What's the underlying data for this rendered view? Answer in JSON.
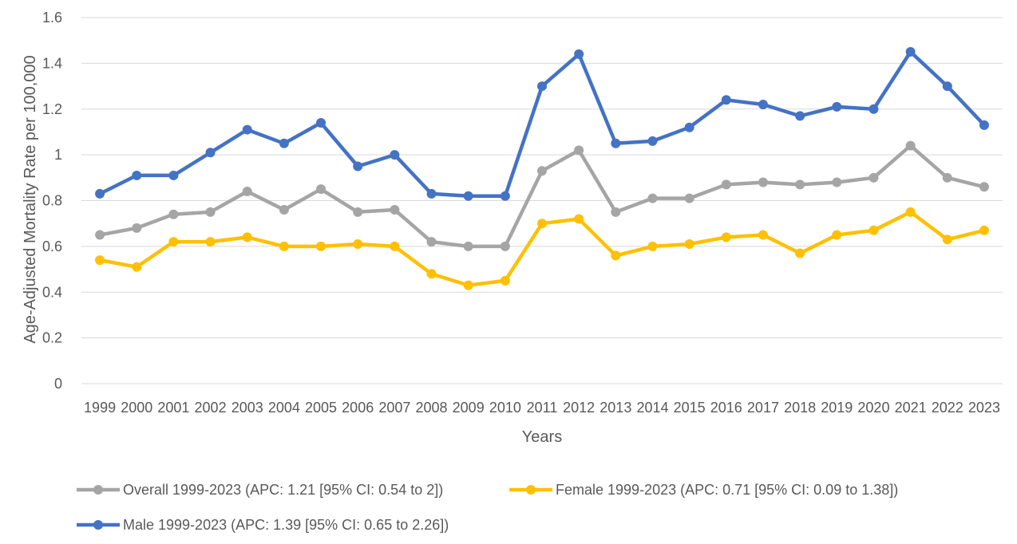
{
  "chart_data": {
    "type": "line",
    "title": "",
    "xlabel": "Years",
    "ylabel": "Age-Adjusted Mortality Rate per 100,000",
    "ylim": [
      0,
      1.6
    ],
    "yticks": [
      "0",
      "0.2",
      "0.4",
      "0.6",
      "0.8",
      "1",
      "1.2",
      "1.4",
      "1.6"
    ],
    "grid": true,
    "legend_position": "bottom",
    "categories": [
      "1999",
      "2000",
      "2001",
      "2002",
      "2003",
      "2004",
      "2005",
      "2006",
      "2007",
      "2008",
      "2009",
      "2010",
      "2011",
      "2012",
      "2013",
      "2014",
      "2015",
      "2016",
      "2017",
      "2018",
      "2019",
      "2020",
      "2021",
      "2022",
      "2023"
    ],
    "series": [
      {
        "name": "Overall 1999-2023 (APC: 1.21 [95% CI: 0.54 to 2])",
        "color": "#a5a5a5",
        "values": [
          0.65,
          0.68,
          0.74,
          0.75,
          0.84,
          0.76,
          0.85,
          0.75,
          0.76,
          0.62,
          0.6,
          0.6,
          0.93,
          1.02,
          0.75,
          0.81,
          0.81,
          0.87,
          0.88,
          0.87,
          0.88,
          0.9,
          1.04,
          0.9,
          0.86
        ]
      },
      {
        "name": "Female 1999-2023 (APC: 0.71 [95% CI: 0.09 to 1.38])",
        "color": "#ffc000",
        "values": [
          0.54,
          0.51,
          0.62,
          0.62,
          0.64,
          0.6,
          0.6,
          0.61,
          0.6,
          0.48,
          0.43,
          0.45,
          0.7,
          0.72,
          0.56,
          0.6,
          0.61,
          0.64,
          0.65,
          0.57,
          0.65,
          0.67,
          0.75,
          0.63,
          0.67
        ]
      },
      {
        "name": "Male 1999-2023 (APC: 1.39 [95% CI: 0.65 to 2.26])",
        "color": "#4472c4",
        "values": [
          0.83,
          0.91,
          0.91,
          1.01,
          1.11,
          1.05,
          1.14,
          0.95,
          1.0,
          0.83,
          0.82,
          0.82,
          1.3,
          1.44,
          1.05,
          1.06,
          1.12,
          1.24,
          1.22,
          1.17,
          1.21,
          1.2,
          1.45,
          1.3,
          1.13
        ]
      }
    ]
  }
}
